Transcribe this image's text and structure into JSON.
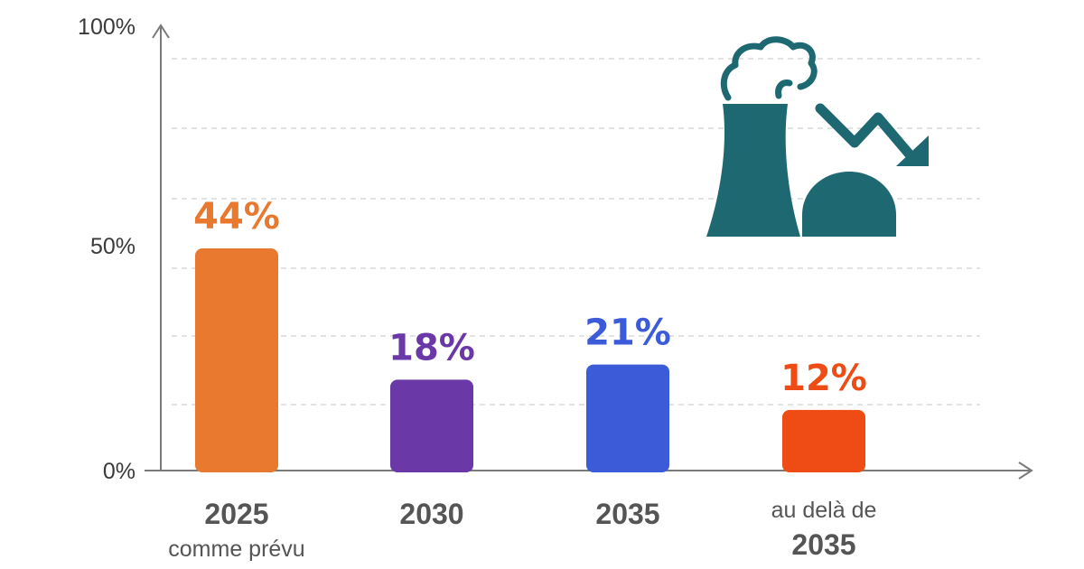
{
  "chart_data": {
    "type": "bar",
    "ylim": [
      0,
      100
    ],
    "grid": true,
    "y_ticks": [
      {
        "value": 0,
        "label": "0%"
      },
      {
        "value": 50,
        "label": "50%"
      },
      {
        "value": 100,
        "label": "100%"
      }
    ],
    "bars": [
      {
        "value": 44,
        "label": "44%",
        "category_lines": [
          "2025",
          "comme prévu"
        ],
        "color": "#E8792E"
      },
      {
        "value": 18,
        "label": "18%",
        "category_lines": [
          "2030"
        ],
        "color": "#6B38A8"
      },
      {
        "value": 21,
        "label": "21%",
        "category_lines": [
          "2035"
        ],
        "color": "#3B5BD8"
      },
      {
        "value": 12,
        "label": "12%",
        "category_lines": [
          "au delà de",
          "2035"
        ],
        "color": "#EE4C14"
      }
    ]
  },
  "colors": {
    "axis": "#7a7a7a",
    "grid": "#d9d9d9",
    "icon": "#1E6872"
  },
  "icons": [
    "factory-decline-icon"
  ]
}
